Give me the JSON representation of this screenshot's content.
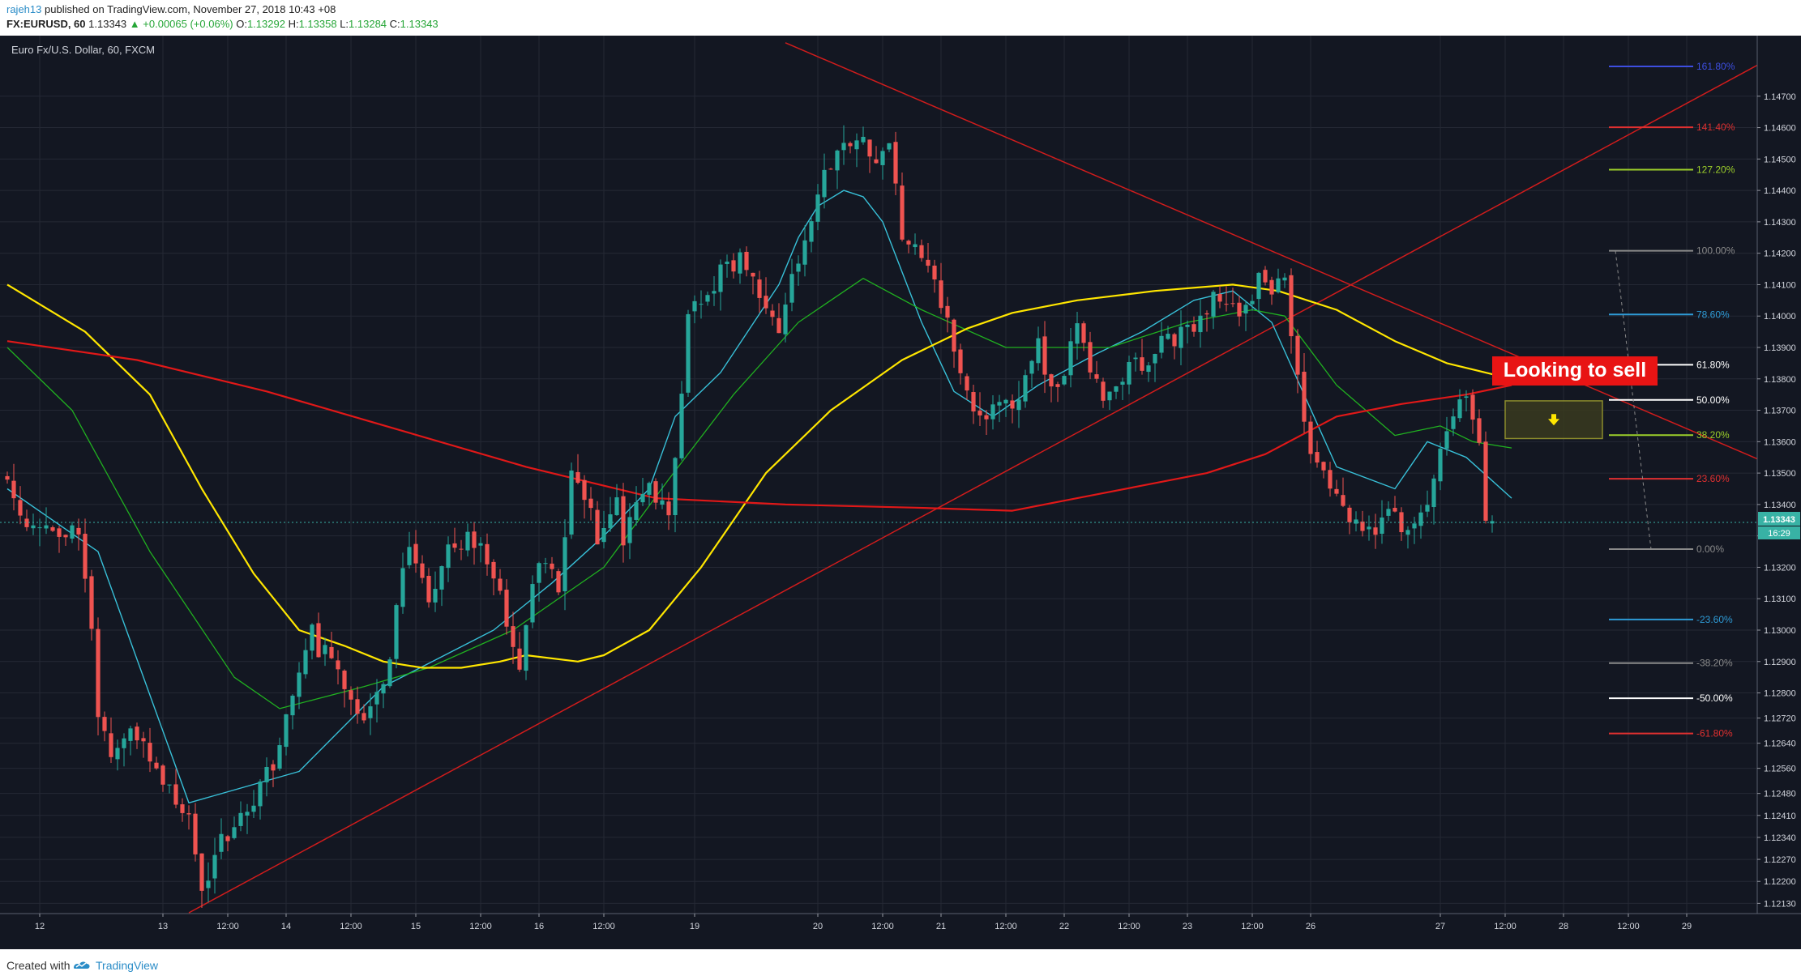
{
  "header": {
    "user": "rajeh13",
    "published": "published on TradingView.com, November 27, 2018 10:43 +08",
    "symbol": "FX:EURUSD, 60",
    "last": "1.13343",
    "change": "+0.00065 (+0.06%)",
    "o_label": "O:",
    "o_value": "1.13292",
    "h_label": "H:",
    "h_value": "1.13358",
    "l_label": "L:",
    "l_value": "1.13284",
    "c_label": "C:",
    "c_value": "1.13343"
  },
  "chart_title": "Euro Fx/U.S. Dollar, 60, FXCM",
  "annotation": {
    "text": "Looking to sell",
    "arrow": "arrow-down-icon"
  },
  "footer": {
    "created_with": "Created with",
    "brand": "TradingView"
  },
  "colors": {
    "background": "#131722",
    "up": "#26a69a",
    "down": "#ef5350",
    "ma_short": "#38c0d8",
    "ma_mid": "#20b020",
    "ma_long": "#ffe600",
    "ma_200": "#e01818",
    "trendline": "#d01c1c",
    "price_line": "#38b2a5"
  },
  "chart_data": {
    "type": "candlestick",
    "title": "Euro Fx/U.S. Dollar, 60, FXCM",
    "ylim": [
      1.121,
      1.148
    ],
    "last_price": "1.13343",
    "countdown": "16:29",
    "price_ticks": [
      "1.14700",
      "1.14600",
      "1.14500",
      "1.14400",
      "1.14300",
      "1.14200",
      "1.14100",
      "1.14000",
      "1.13900",
      "1.13800",
      "1.13700",
      "1.13600",
      "1.13500",
      "1.13400",
      "1.13300",
      "1.13200",
      "1.13100",
      "1.13000",
      "1.12900",
      "1.12800",
      "1.12720",
      "1.12640",
      "1.12560",
      "1.12480",
      "1.12410",
      "1.12340",
      "1.12270",
      "1.12200",
      "1.12130"
    ],
    "price_tick_values": [
      1.147,
      1.146,
      1.145,
      1.144,
      1.143,
      1.142,
      1.141,
      1.14,
      1.139,
      1.138,
      1.137,
      1.136,
      1.135,
      1.134,
      1.133,
      1.132,
      1.131,
      1.13,
      1.129,
      1.128,
      1.1272,
      1.1264,
      1.1256,
      1.1248,
      1.1241,
      1.1234,
      1.1227,
      1.122,
      1.1213
    ],
    "time_ticks": [
      "12",
      "13",
      "12:00",
      "14",
      "12:00",
      "15",
      "12:00",
      "16",
      "12:00",
      "19",
      "20",
      "12:00",
      "21",
      "12:00",
      "22",
      "12:00",
      "23",
      "12:00",
      "26",
      "27",
      "12:00",
      "28",
      "12:00",
      "29"
    ],
    "time_tick_index": [
      5,
      24,
      34,
      43,
      53,
      63,
      73,
      82,
      92,
      106,
      125,
      135,
      144,
      154,
      163,
      173,
      182,
      192,
      201,
      221,
      231,
      240,
      250,
      259
    ],
    "bar_count": 230,
    "candle_anchors": {
      "index": [
        0,
        3,
        6,
        9,
        12,
        14,
        15,
        17,
        20,
        23,
        26,
        29,
        31,
        33,
        38,
        42,
        45,
        48,
        52,
        56,
        60,
        63,
        66,
        70,
        74,
        78,
        80,
        83,
        86,
        88,
        92,
        95,
        96,
        100,
        103,
        106,
        110,
        114,
        118,
        120,
        124,
        128,
        130,
        133,
        135,
        137,
        139,
        142,
        146,
        150,
        153,
        156,
        160,
        163,
        166,
        170,
        174,
        177,
        180,
        184,
        188,
        192,
        194,
        196,
        198,
        202,
        204,
        206,
        208,
        210,
        214,
        218,
        222,
        225,
        228,
        229
      ],
      "price": [
        1.135,
        1.1335,
        1.1335,
        1.133,
        1.1333,
        1.13,
        1.1275,
        1.126,
        1.1265,
        1.1262,
        1.125,
        1.1238,
        1.122,
        1.1228,
        1.1245,
        1.1255,
        1.1278,
        1.1298,
        1.1285,
        1.1268,
        1.1292,
        1.133,
        1.1305,
        1.133,
        1.1325,
        1.1305,
        1.129,
        1.1325,
        1.1315,
        1.135,
        1.133,
        1.134,
        1.133,
        1.1348,
        1.1335,
        1.1398,
        1.141,
        1.142,
        1.1405,
        1.1398,
        1.1425,
        1.145,
        1.1458,
        1.1455,
        1.1448,
        1.1455,
        1.1425,
        1.142,
        1.1398,
        1.137,
        1.1368,
        1.137,
        1.139,
        1.1375,
        1.1395,
        1.1375,
        1.1382,
        1.1388,
        1.1392,
        1.1395,
        1.1408,
        1.1402,
        1.1412,
        1.1408,
        1.141,
        1.1355,
        1.135,
        1.1345,
        1.1338,
        1.133,
        1.1335,
        1.1332,
        1.1355,
        1.1375,
        1.1362,
        1.1334
      ]
    },
    "moving_averages": [
      {
        "key": "ma_short",
        "index": [
          0,
          14,
          28,
          45,
          58,
          75,
          84,
          92,
          99,
          103,
          110,
          119,
          122,
          125,
          129,
          132,
          135,
          141,
          146,
          152,
          159,
          168,
          175,
          183,
          189,
          195,
          205,
          214,
          219,
          225,
          232
        ],
        "value": [
          1.1345,
          1.1325,
          1.1245,
          1.1255,
          1.1282,
          1.13,
          1.1315,
          1.133,
          1.1345,
          1.1368,
          1.1382,
          1.141,
          1.1425,
          1.1435,
          1.144,
          1.1438,
          1.143,
          1.1398,
          1.1376,
          1.1368,
          1.1378,
          1.1388,
          1.1395,
          1.1405,
          1.1408,
          1.1398,
          1.1352,
          1.1345,
          1.136,
          1.1355,
          1.1342
        ]
      },
      {
        "key": "ma_mid",
        "index": [
          0,
          10,
          22,
          35,
          42,
          55,
          65,
          78,
          92,
          102,
          112,
          122,
          132,
          141,
          154,
          170,
          182,
          192,
          197,
          205,
          214,
          221,
          226,
          232
        ],
        "value": [
          1.139,
          1.137,
          1.1325,
          1.1285,
          1.1275,
          1.1282,
          1.1288,
          1.13,
          1.132,
          1.1348,
          1.1375,
          1.1398,
          1.1412,
          1.1402,
          1.139,
          1.139,
          1.1398,
          1.1402,
          1.14,
          1.1378,
          1.1362,
          1.1365,
          1.136,
          1.1358
        ]
      },
      {
        "key": "ma_long",
        "index": [
          0,
          12,
          22,
          30,
          38,
          45,
          52,
          58,
          64,
          70,
          76,
          80,
          88,
          92,
          99,
          107,
          117,
          127,
          138,
          148,
          155,
          165,
          177,
          189,
          196,
          205,
          214,
          222,
          232
        ],
        "value": [
          1.141,
          1.1395,
          1.1375,
          1.1345,
          1.1318,
          1.13,
          1.1295,
          1.129,
          1.1288,
          1.1288,
          1.129,
          1.1292,
          1.129,
          1.1292,
          1.13,
          1.132,
          1.135,
          1.137,
          1.1386,
          1.1396,
          1.1401,
          1.1405,
          1.1408,
          1.141,
          1.1408,
          1.1402,
          1.1392,
          1.1385,
          1.138
        ]
      },
      {
        "key": "ma_200",
        "index": [
          0,
          20,
          40,
          60,
          80,
          100,
          120,
          140,
          155,
          165,
          175,
          185,
          194,
          205,
          215,
          225,
          232
        ],
        "value": [
          1.1392,
          1.1386,
          1.1376,
          1.1364,
          1.1352,
          1.1342,
          1.134,
          1.1339,
          1.1338,
          1.1342,
          1.1346,
          1.135,
          1.1356,
          1.1368,
          1.1372,
          1.1375,
          1.1378
        ]
      }
    ],
    "trendlines": [
      {
        "name": "descending-resistance",
        "p1": [
          120,
          1.1487
        ],
        "p2": [
          275,
          1.135
        ]
      },
      {
        "name": "ascending-support",
        "p1": [
          28,
          1.121
        ],
        "p2": [
          270,
          1.148
        ]
      }
    ],
    "fibonacci": {
      "levels": [
        {
          "label": "161.80%",
          "price": 1.14795,
          "color": "#3d4ee0"
        },
        {
          "label": "141.40%",
          "price": 1.14601,
          "color": "#e03030"
        },
        {
          "label": "127.20%",
          "price": 1.14466,
          "color": "#9ccf2a"
        },
        {
          "label": "100.00%",
          "price": 1.14208,
          "color": "#8a8a8a"
        },
        {
          "label": "78.60%",
          "price": 1.14005,
          "color": "#2e9bd6"
        },
        {
          "label": "61.80%",
          "price": 1.13845,
          "color": "#ffffff"
        },
        {
          "label": "50.00%",
          "price": 1.13733,
          "color": "#ffffff"
        },
        {
          "label": "38.20%",
          "price": 1.13621,
          "color": "#9ccf2a"
        },
        {
          "label": "23.60%",
          "price": 1.13482,
          "color": "#e03030"
        },
        {
          "label": "0.00%",
          "price": 1.13258,
          "color": "#8a8a8a"
        },
        {
          "label": "-23.60%",
          "price": 1.13034,
          "color": "#2e9bd6"
        },
        {
          "label": "-38.20%",
          "price": 1.12895,
          "color": "#8a8a8a"
        },
        {
          "label": "-50.00%",
          "price": 1.12783,
          "color": "#ffffff"
        },
        {
          "label": "-61.80%",
          "price": 1.12671,
          "color": "#e03030"
        }
      ],
      "x_index": [
        247,
        260
      ]
    },
    "sell_zone": {
      "x_index": [
        231,
        246
      ],
      "price": [
        1.1361,
        1.1373
      ]
    }
  }
}
